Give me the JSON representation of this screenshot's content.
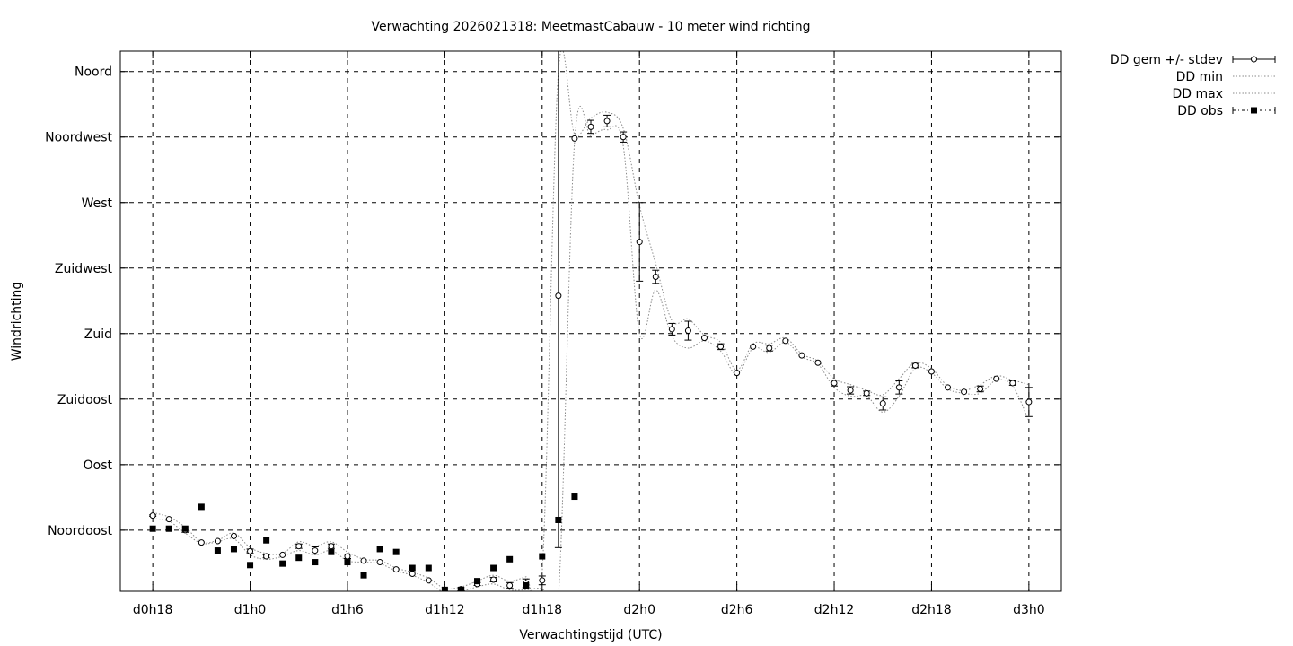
{
  "chart_data": {
    "type": "scatter",
    "title": "Verwachting 2026021318: MeetmastCabauw - 10 meter wind richting",
    "xlabel": "Verwachtingstijd (UTC)",
    "ylabel": "Windrichting",
    "x_ticks": [
      {
        "value": 18,
        "label": "d0h18"
      },
      {
        "value": 24,
        "label": "d1h0"
      },
      {
        "value": 30,
        "label": "d1h6"
      },
      {
        "value": 36,
        "label": "d1h12"
      },
      {
        "value": 42,
        "label": "d1h18"
      },
      {
        "value": 48,
        "label": "d2h0"
      },
      {
        "value": 54,
        "label": "d2h6"
      },
      {
        "value": 60,
        "label": "d2h12"
      },
      {
        "value": 66,
        "label": "d2h18"
      },
      {
        "value": 72,
        "label": "d3h0"
      }
    ],
    "y_ticks": [
      {
        "value": 45,
        "label": "Noordoost"
      },
      {
        "value": 90,
        "label": "Oost"
      },
      {
        "value": 135,
        "label": "Zuidoost"
      },
      {
        "value": 180,
        "label": "Zuid"
      },
      {
        "value": 225,
        "label": "Zuidwest"
      },
      {
        "value": 270,
        "label": "West"
      },
      {
        "value": 315,
        "label": "Noordwest"
      },
      {
        "value": 360,
        "label": "Noord"
      }
    ],
    "xlim": [
      16,
      74
    ],
    "ylim": [
      3,
      374
    ],
    "grid": true,
    "legend_position": "outside-top-right",
    "series": [
      {
        "name": "DD gem +/- stdev",
        "style": "open-circle-errorbar",
        "points": [
          {
            "x": 18,
            "y": 55,
            "err": 0.5
          },
          {
            "x": 19,
            "y": 52.5,
            "err": 0
          },
          {
            "x": 20,
            "y": 45,
            "err": 1.5
          },
          {
            "x": 21,
            "y": 36.5,
            "err": 0
          },
          {
            "x": 22,
            "y": 37.5,
            "err": 0
          },
          {
            "x": 23,
            "y": 41,
            "err": 0
          },
          {
            "x": 24,
            "y": 30.5,
            "err": 1.5
          },
          {
            "x": 25,
            "y": 27,
            "err": 1
          },
          {
            "x": 26,
            "y": 28,
            "err": 0
          },
          {
            "x": 27,
            "y": 34,
            "err": 1.5
          },
          {
            "x": 28,
            "y": 31,
            "err": 2.5
          },
          {
            "x": 29,
            "y": 34,
            "err": 1.5
          },
          {
            "x": 30,
            "y": 27,
            "err": 1.5
          },
          {
            "x": 31,
            "y": 24,
            "err": 0
          },
          {
            "x": 32,
            "y": 23,
            "err": 0
          },
          {
            "x": 33,
            "y": 18,
            "err": 0
          },
          {
            "x": 34,
            "y": 15,
            "err": 0
          },
          {
            "x": 35,
            "y": 10.5,
            "err": 0
          },
          {
            "x": 36,
            "y": 3,
            "err": 0
          },
          {
            "x": 37,
            "y": 4.5,
            "err": 1
          },
          {
            "x": 38,
            "y": 8,
            "err": 1
          },
          {
            "x": 39,
            "y": 11,
            "err": 1.5
          },
          {
            "x": 40,
            "y": 7,
            "err": 2
          },
          {
            "x": 41,
            "y": 8.5,
            "err": 3
          },
          {
            "x": 42,
            "y": 10.5,
            "err": 3
          },
          {
            "x": 43,
            "y": 206,
            "err": 173
          },
          {
            "x": 44,
            "y": 314,
            "err": 0
          },
          {
            "x": 45,
            "y": 322,
            "err": 4.5
          },
          {
            "x": 46,
            "y": 326,
            "err": 4
          },
          {
            "x": 47,
            "y": 315,
            "err": 3.5
          },
          {
            "x": 48,
            "y": 243,
            "err": 27
          },
          {
            "x": 49,
            "y": 219,
            "err": 4.5
          },
          {
            "x": 50,
            "y": 183,
            "err": 4
          },
          {
            "x": 51,
            "y": 182,
            "err": 6.5
          },
          {
            "x": 52,
            "y": 177,
            "err": 0
          },
          {
            "x": 53,
            "y": 171,
            "err": 2
          },
          {
            "x": 54,
            "y": 153,
            "err": 0
          },
          {
            "x": 55,
            "y": 171,
            "err": 0
          },
          {
            "x": 56,
            "y": 170,
            "err": 2
          },
          {
            "x": 57,
            "y": 175,
            "err": 0
          },
          {
            "x": 58,
            "y": 165,
            "err": 0
          },
          {
            "x": 59,
            "y": 160,
            "err": 0
          },
          {
            "x": 60,
            "y": 146,
            "err": 2
          },
          {
            "x": 61,
            "y": 141,
            "err": 2.5
          },
          {
            "x": 62,
            "y": 139,
            "err": 1.5
          },
          {
            "x": 63,
            "y": 132,
            "err": 4.5
          },
          {
            "x": 64,
            "y": 143,
            "err": 4.5
          },
          {
            "x": 65,
            "y": 158,
            "err": 1.5
          },
          {
            "x": 66,
            "y": 154,
            "err": 0
          },
          {
            "x": 67,
            "y": 143,
            "err": 0
          },
          {
            "x": 68,
            "y": 140,
            "err": 0
          },
          {
            "x": 69,
            "y": 142,
            "err": 2
          },
          {
            "x": 70,
            "y": 149,
            "err": 0
          },
          {
            "x": 71,
            "y": 146,
            "err": 1.5
          },
          {
            "x": 72,
            "y": 133,
            "err": 10
          }
        ]
      },
      {
        "name": "DD min",
        "style": "dotted",
        "points": [
          {
            "x": 18,
            "y": 53
          },
          {
            "x": 19,
            "y": 51
          },
          {
            "x": 20,
            "y": 43
          },
          {
            "x": 21,
            "y": 36
          },
          {
            "x": 22,
            "y": 37
          },
          {
            "x": 23,
            "y": 39
          },
          {
            "x": 24,
            "y": 28
          },
          {
            "x": 25,
            "y": 25
          },
          {
            "x": 26,
            "y": 27
          },
          {
            "x": 27,
            "y": 31
          },
          {
            "x": 28,
            "y": 28
          },
          {
            "x": 29,
            "y": 31
          },
          {
            "x": 30,
            "y": 24
          },
          {
            "x": 31,
            "y": 23
          },
          {
            "x": 32,
            "y": 22
          },
          {
            "x": 33,
            "y": 17
          },
          {
            "x": 34,
            "y": 14
          },
          {
            "x": 35,
            "y": 9
          },
          {
            "x": 36,
            "y": 2
          },
          {
            "x": 37,
            "y": 3
          },
          {
            "x": 38,
            "y": 6
          },
          {
            "x": 39,
            "y": 8
          },
          {
            "x": 40,
            "y": 4
          },
          {
            "x": 41,
            "y": 4
          },
          {
            "x": 42,
            "y": 5
          },
          {
            "x": 43,
            "y": 0
          },
          {
            "x": 44,
            "y": 312
          },
          {
            "x": 45,
            "y": 316
          },
          {
            "x": 46,
            "y": 320
          },
          {
            "x": 47,
            "y": 309
          },
          {
            "x": 48,
            "y": 180
          },
          {
            "x": 49,
            "y": 210
          },
          {
            "x": 50,
            "y": 178
          },
          {
            "x": 51,
            "y": 170
          },
          {
            "x": 52,
            "y": 175
          },
          {
            "x": 53,
            "y": 168
          },
          {
            "x": 54,
            "y": 152
          },
          {
            "x": 55,
            "y": 170
          },
          {
            "x": 56,
            "y": 167
          },
          {
            "x": 57,
            "y": 174
          },
          {
            "x": 58,
            "y": 164
          },
          {
            "x": 59,
            "y": 159
          },
          {
            "x": 60,
            "y": 143
          },
          {
            "x": 61,
            "y": 137
          },
          {
            "x": 62,
            "y": 137
          },
          {
            "x": 63,
            "y": 126
          },
          {
            "x": 64,
            "y": 137
          },
          {
            "x": 65,
            "y": 156
          },
          {
            "x": 66,
            "y": 153
          },
          {
            "x": 67,
            "y": 142
          },
          {
            "x": 68,
            "y": 139
          },
          {
            "x": 69,
            "y": 139
          },
          {
            "x": 70,
            "y": 148
          },
          {
            "x": 71,
            "y": 144
          },
          {
            "x": 72,
            "y": 120
          }
        ]
      },
      {
        "name": "DD max",
        "style": "dotted",
        "points": [
          {
            "x": 18,
            "y": 57
          },
          {
            "x": 19,
            "y": 54
          },
          {
            "x": 20,
            "y": 47
          },
          {
            "x": 21,
            "y": 37
          },
          {
            "x": 22,
            "y": 38
          },
          {
            "x": 23,
            "y": 43
          },
          {
            "x": 24,
            "y": 33
          },
          {
            "x": 25,
            "y": 29
          },
          {
            "x": 26,
            "y": 29
          },
          {
            "x": 27,
            "y": 37
          },
          {
            "x": 28,
            "y": 34
          },
          {
            "x": 29,
            "y": 37
          },
          {
            "x": 30,
            "y": 30
          },
          {
            "x": 31,
            "y": 25
          },
          {
            "x": 32,
            "y": 24
          },
          {
            "x": 33,
            "y": 19
          },
          {
            "x": 34,
            "y": 16
          },
          {
            "x": 35,
            "y": 12
          },
          {
            "x": 36,
            "y": 5
          },
          {
            "x": 37,
            "y": 6
          },
          {
            "x": 38,
            "y": 10
          },
          {
            "x": 39,
            "y": 14
          },
          {
            "x": 40,
            "y": 10
          },
          {
            "x": 41,
            "y": 13
          },
          {
            "x": 42,
            "y": 16
          },
          {
            "x": 43,
            "y": 360
          },
          {
            "x": 44,
            "y": 317
          },
          {
            "x": 45,
            "y": 328
          },
          {
            "x": 46,
            "y": 332
          },
          {
            "x": 47,
            "y": 321
          },
          {
            "x": 48,
            "y": 268
          },
          {
            "x": 49,
            "y": 228
          },
          {
            "x": 50,
            "y": 189
          },
          {
            "x": 51,
            "y": 190
          },
          {
            "x": 52,
            "y": 179
          },
          {
            "x": 53,
            "y": 174
          },
          {
            "x": 54,
            "y": 155
          },
          {
            "x": 55,
            "y": 173
          },
          {
            "x": 56,
            "y": 173
          },
          {
            "x": 57,
            "y": 177
          },
          {
            "x": 58,
            "y": 166
          },
          {
            "x": 59,
            "y": 161
          },
          {
            "x": 60,
            "y": 149
          },
          {
            "x": 61,
            "y": 145
          },
          {
            "x": 62,
            "y": 141
          },
          {
            "x": 63,
            "y": 138
          },
          {
            "x": 64,
            "y": 149
          },
          {
            "x": 65,
            "y": 160
          },
          {
            "x": 66,
            "y": 156
          },
          {
            "x": 67,
            "y": 144
          },
          {
            "x": 68,
            "y": 141
          },
          {
            "x": 69,
            "y": 145
          },
          {
            "x": 70,
            "y": 151
          },
          {
            "x": 71,
            "y": 148
          },
          {
            "x": 72,
            "y": 145
          }
        ]
      },
      {
        "name": "DD obs",
        "style": "filled-square",
        "points": [
          {
            "x": 18,
            "y": 46
          },
          {
            "x": 19,
            "y": 46
          },
          {
            "x": 20,
            "y": 46
          },
          {
            "x": 21,
            "y": 61
          },
          {
            "x": 22,
            "y": 31
          },
          {
            "x": 23,
            "y": 32
          },
          {
            "x": 24,
            "y": 21
          },
          {
            "x": 25,
            "y": 38
          },
          {
            "x": 26,
            "y": 22
          },
          {
            "x": 27,
            "y": 26
          },
          {
            "x": 28,
            "y": 23
          },
          {
            "x": 29,
            "y": 30
          },
          {
            "x": 30,
            "y": 23
          },
          {
            "x": 31,
            "y": 14
          },
          {
            "x": 32,
            "y": 32
          },
          {
            "x": 33,
            "y": 30
          },
          {
            "x": 34,
            "y": 19
          },
          {
            "x": 35,
            "y": 19
          },
          {
            "x": 36,
            "y": 4
          },
          {
            "x": 37,
            "y": 4
          },
          {
            "x": 38,
            "y": 10
          },
          {
            "x": 39,
            "y": 19
          },
          {
            "x": 40,
            "y": 25
          },
          {
            "x": 41,
            "y": 7
          },
          {
            "x": 42,
            "y": 27
          },
          {
            "x": 43,
            "y": 52
          },
          {
            "x": 44,
            "y": 68
          }
        ]
      }
    ]
  }
}
